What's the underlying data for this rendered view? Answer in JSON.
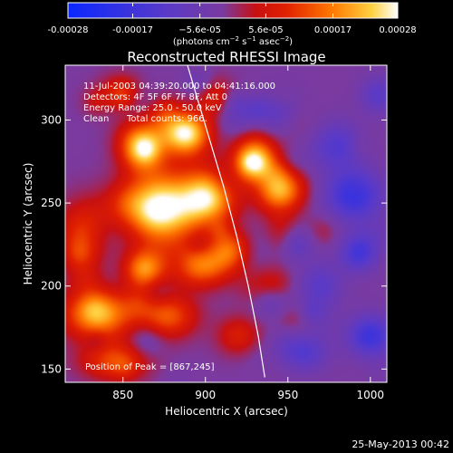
{
  "chart_data": {
    "type": "heatmap",
    "title": "Reconstructed RHESSI Image",
    "xlabel": "Heliocentric X (arcsec)",
    "ylabel": "Heliocentric Y (arcsec)",
    "xlim": [
      815,
      1010
    ],
    "ylim": [
      142,
      333
    ],
    "x_ticks": [
      850,
      900,
      950,
      1000
    ],
    "y_ticks": [
      150,
      200,
      250,
      300
    ],
    "colorbar": {
      "min": -0.00028,
      "max": 0.00028,
      "tick_values": [
        -0.00028,
        -0.00017,
        -5.6e-05,
        5.6e-05,
        0.00017,
        0.00028
      ],
      "tick_labels": [
        "-0.00028",
        "-0.00017",
        "−5.6e-05",
        "5.6e-05",
        "0.00017",
        "0.00028"
      ],
      "units_main": "(photons cm",
      "units_exp1": "−2",
      "units_mid": " s",
      "units_exp2": "−1",
      "units_end": " asec",
      "units_exp3": "−2",
      "units_close": ")"
    },
    "annotations": {
      "time_range": "11-Jul-2003 04:39:20.000 to 04:41:16.000",
      "detectors": "Detectors: 4F 5F 6F 7F 8F, Att 0",
      "energy_range": "Energy Range: 25.0 - 50.0 keV",
      "method": "Clean",
      "total_counts": "Total counts: 966.",
      "peak_position": "Position of Peak = [867,245]"
    },
    "limb_curve": [
      [
        887,
        340
      ],
      [
        893,
        320
      ],
      [
        902,
        290
      ],
      [
        911,
        260
      ],
      [
        919,
        230
      ],
      [
        926,
        200
      ],
      [
        932,
        170
      ],
      [
        936,
        145
      ]
    ],
    "sources": [
      {
        "x": 873,
        "y": 247,
        "sx": 16,
        "sy": 15,
        "a": 1.0
      },
      {
        "x": 888,
        "y": 292,
        "sx": 10,
        "sy": 9,
        "a": 0.95
      },
      {
        "x": 862,
        "y": 283,
        "sx": 9,
        "sy": 9,
        "a": 0.8
      },
      {
        "x": 902,
        "y": 253,
        "sx": 11,
        "sy": 12,
        "a": 0.8
      },
      {
        "x": 930,
        "y": 275,
        "sx": 9,
        "sy": 10,
        "a": 0.9
      },
      {
        "x": 945,
        "y": 258,
        "sx": 10,
        "sy": 9,
        "a": 0.75
      },
      {
        "x": 897,
        "y": 213,
        "sx": 12,
        "sy": 9,
        "a": 0.6
      },
      {
        "x": 862,
        "y": 210,
        "sx": 8,
        "sy": 8,
        "a": 0.55
      },
      {
        "x": 835,
        "y": 183,
        "sx": 14,
        "sy": 10,
        "a": 0.75
      },
      {
        "x": 877,
        "y": 182,
        "sx": 12,
        "sy": 9,
        "a": 0.5
      },
      {
        "x": 915,
        "y": 222,
        "sx": 8,
        "sy": 8,
        "a": 0.45
      },
      {
        "x": 845,
        "y": 155,
        "sx": 14,
        "sy": 8,
        "a": 0.45
      },
      {
        "x": 825,
        "y": 230,
        "sx": 10,
        "sy": 14,
        "a": 0.4
      },
      {
        "x": 920,
        "y": 170,
        "sx": 9,
        "sy": 8,
        "a": 0.3
      },
      {
        "x": 905,
        "y": 313,
        "sx": 8,
        "sy": 8,
        "a": 0.35
      },
      {
        "x": 850,
        "y": 318,
        "sx": 9,
        "sy": 7,
        "a": 0.3
      },
      {
        "x": 990,
        "y": 255,
        "sx": 12,
        "sy": 11,
        "a": -0.55
      },
      {
        "x": 1000,
        "y": 170,
        "sx": 10,
        "sy": 9,
        "a": -0.5
      },
      {
        "x": 993,
        "y": 220,
        "sx": 8,
        "sy": 8,
        "a": -0.45
      },
      {
        "x": 960,
        "y": 160,
        "sx": 10,
        "sy": 8,
        "a": -0.35
      },
      {
        "x": 945,
        "y": 305,
        "sx": 9,
        "sy": 9,
        "a": -0.3
      },
      {
        "x": 970,
        "y": 200,
        "sx": 9,
        "sy": 10,
        "a": -0.3
      },
      {
        "x": 980,
        "y": 285,
        "sx": 10,
        "sy": 10,
        "a": -0.35
      },
      {
        "x": 955,
        "y": 225,
        "sx": 7,
        "sy": 7,
        "a": -0.25
      },
      {
        "x": 940,
        "y": 190,
        "sx": 7,
        "sy": 7,
        "a": -0.2
      },
      {
        "x": 1005,
        "y": 315,
        "sx": 8,
        "sy": 8,
        "a": -0.3
      }
    ]
  },
  "footer": {
    "timestamp": "25-May-2013 00:42"
  },
  "colors": {
    "background": "#000000",
    "foreground": "#ffffff",
    "negative_low": "#0a28ff",
    "negative_mid": "#5a3ac8",
    "zero": "#7a3aa0",
    "positive_mid": "#e02000",
    "positive_high": "#ffa000",
    "positive_max": "#ffffff"
  }
}
